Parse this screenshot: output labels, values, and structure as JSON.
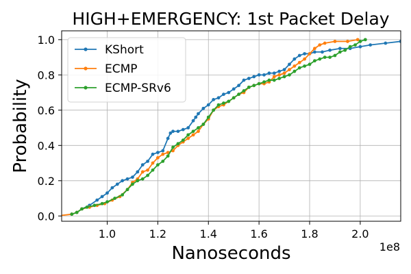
{
  "chart_data": {
    "type": "line",
    "title": "HIGH+EMERGENCY: 1st Packet Delay",
    "xlabel": "Nanoseconds",
    "ylabel": "Probability",
    "x_offset_label": "1e8",
    "xlim": [
      0.82,
      2.16
    ],
    "ylim": [
      -0.03,
      1.05
    ],
    "x_ticks": [
      1.0,
      1.2,
      1.4,
      1.6,
      1.8,
      2.0
    ],
    "x_tick_labels": [
      "1.0",
      "1.2",
      "1.4",
      "1.6",
      "1.8",
      "2.0"
    ],
    "y_ticks": [
      0.0,
      0.2,
      0.4,
      0.6,
      0.8,
      1.0
    ],
    "y_tick_labels": [
      "0.0",
      "0.2",
      "0.4",
      "0.6",
      "0.8",
      "1.0"
    ],
    "grid": true,
    "legend_position": "top-left",
    "series": [
      {
        "name": "KShort",
        "color": "#1f77b4",
        "x": [
          0.86,
          0.88,
          0.9,
          0.93,
          0.96,
          0.98,
          1.0,
          1.02,
          1.04,
          1.06,
          1.08,
          1.1,
          1.12,
          1.14,
          1.16,
          1.18,
          1.2,
          1.22,
          1.24,
          1.25,
          1.26,
          1.28,
          1.3,
          1.32,
          1.34,
          1.35,
          1.36,
          1.38,
          1.4,
          1.42,
          1.44,
          1.46,
          1.48,
          1.5,
          1.52,
          1.54,
          1.56,
          1.58,
          1.6,
          1.62,
          1.64,
          1.66,
          1.68,
          1.7,
          1.72,
          1.74,
          1.76,
          1.78,
          1.8,
          1.82,
          1.85,
          1.88,
          1.92,
          1.96,
          2.0,
          2.04,
          2.1,
          2.16
        ],
        "y": [
          0.01,
          0.02,
          0.04,
          0.06,
          0.09,
          0.11,
          0.13,
          0.16,
          0.18,
          0.2,
          0.21,
          0.22,
          0.25,
          0.29,
          0.31,
          0.35,
          0.36,
          0.37,
          0.44,
          0.47,
          0.48,
          0.48,
          0.49,
          0.5,
          0.54,
          0.56,
          0.58,
          0.61,
          0.63,
          0.66,
          0.67,
          0.69,
          0.7,
          0.72,
          0.74,
          0.77,
          0.78,
          0.79,
          0.8,
          0.8,
          0.81,
          0.81,
          0.82,
          0.83,
          0.86,
          0.89,
          0.91,
          0.92,
          0.92,
          0.93,
          0.93,
          0.94,
          0.95,
          0.95,
          0.96,
          0.97,
          0.98,
          0.99
        ]
      },
      {
        "name": "ECMP",
        "color": "#ff7f0e",
        "x": [
          0.8,
          0.86,
          0.88,
          0.9,
          0.93,
          0.96,
          0.99,
          1.02,
          1.05,
          1.08,
          1.1,
          1.12,
          1.14,
          1.16,
          1.18,
          1.2,
          1.22,
          1.24,
          1.26,
          1.28,
          1.3,
          1.32,
          1.34,
          1.36,
          1.38,
          1.4,
          1.42,
          1.44,
          1.46,
          1.48,
          1.5,
          1.52,
          1.54,
          1.56,
          1.58,
          1.6,
          1.62,
          1.64,
          1.66,
          1.68,
          1.7,
          1.72,
          1.74,
          1.76,
          1.78,
          1.8,
          1.82,
          1.84,
          1.86,
          1.9,
          1.95,
          1.99
        ],
        "y": [
          0.0,
          0.01,
          0.02,
          0.04,
          0.05,
          0.06,
          0.07,
          0.09,
          0.11,
          0.15,
          0.19,
          0.21,
          0.25,
          0.26,
          0.3,
          0.33,
          0.35,
          0.36,
          0.37,
          0.4,
          0.42,
          0.44,
          0.46,
          0.48,
          0.52,
          0.55,
          0.6,
          0.62,
          0.63,
          0.65,
          0.67,
          0.69,
          0.7,
          0.73,
          0.74,
          0.75,
          0.75,
          0.76,
          0.79,
          0.8,
          0.81,
          0.83,
          0.85,
          0.87,
          0.89,
          0.92,
          0.95,
          0.97,
          0.98,
          0.99,
          0.99,
          1.0
        ]
      },
      {
        "name": "ECMP-SRv6",
        "color": "#2ca02c",
        "x": [
          0.86,
          0.88,
          0.9,
          0.92,
          0.95,
          0.98,
          1.0,
          1.03,
          1.06,
          1.08,
          1.1,
          1.12,
          1.14,
          1.16,
          1.18,
          1.2,
          1.22,
          1.24,
          1.26,
          1.28,
          1.3,
          1.32,
          1.34,
          1.36,
          1.38,
          1.4,
          1.42,
          1.44,
          1.46,
          1.48,
          1.5,
          1.52,
          1.54,
          1.56,
          1.58,
          1.6,
          1.62,
          1.64,
          1.66,
          1.68,
          1.7,
          1.72,
          1.74,
          1.76,
          1.78,
          1.8,
          1.82,
          1.84,
          1.86,
          1.88,
          1.9,
          1.92,
          1.94,
          1.96,
          1.98,
          2.0,
          2.02
        ],
        "y": [
          0.01,
          0.02,
          0.04,
          0.05,
          0.06,
          0.07,
          0.08,
          0.1,
          0.12,
          0.15,
          0.18,
          0.2,
          0.21,
          0.23,
          0.26,
          0.29,
          0.31,
          0.34,
          0.39,
          0.41,
          0.43,
          0.46,
          0.48,
          0.5,
          0.52,
          0.56,
          0.6,
          0.63,
          0.64,
          0.65,
          0.67,
          0.69,
          0.71,
          0.73,
          0.74,
          0.75,
          0.76,
          0.77,
          0.77,
          0.78,
          0.79,
          0.8,
          0.82,
          0.84,
          0.85,
          0.86,
          0.88,
          0.89,
          0.9,
          0.9,
          0.91,
          0.93,
          0.94,
          0.96,
          0.97,
          0.99,
          1.0
        ]
      }
    ]
  }
}
